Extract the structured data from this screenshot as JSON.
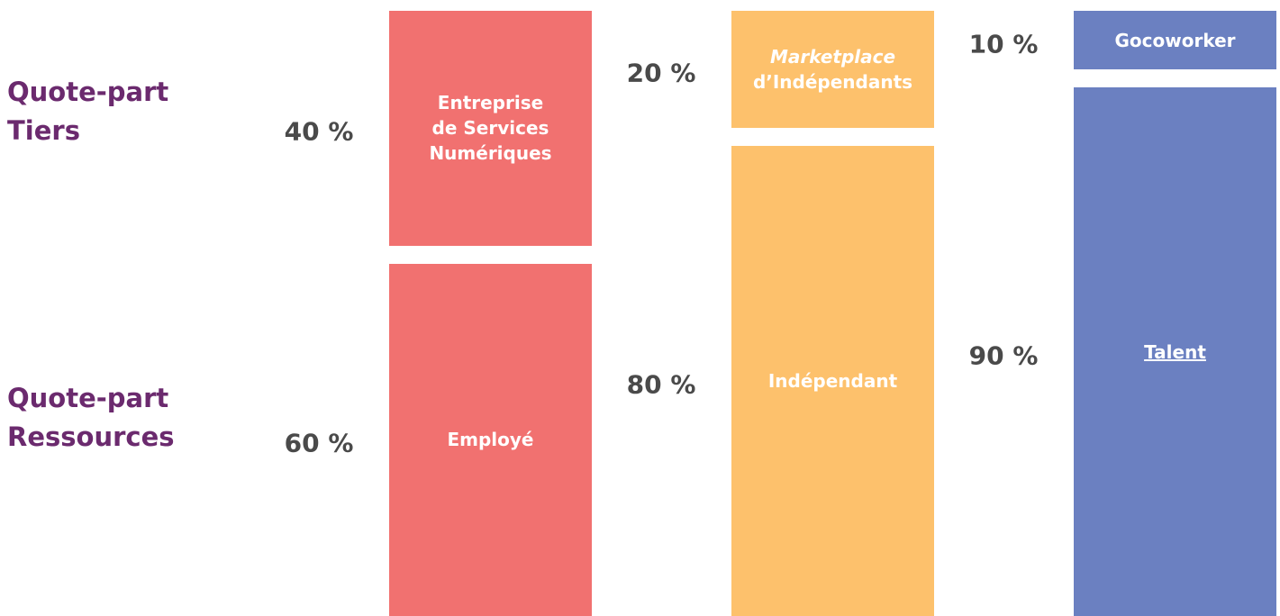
{
  "chart_data": {
    "type": "bar",
    "stacked": true,
    "categories": [
      null,
      null,
      null
    ],
    "colors": [
      "#f17170",
      "#fdc16c",
      "#6b80c1"
    ],
    "ylim": [
      0,
      100
    ],
    "series": [
      {
        "name": "Quote-part Tiers",
        "color": "#6b2a6e",
        "values": [
          40,
          20,
          10
        ],
        "value_labels": [
          "40 %",
          "20 %",
          "10 %"
        ],
        "labels": [
          [
            "Entreprise",
            "de Services",
            "Numériques"
          ],
          [
            "Marketplace",
            "d’Indépendants"
          ],
          [
            "Gocoworker"
          ]
        ]
      },
      {
        "name": "Quote-part Ressources",
        "color": "#6b2a6e",
        "values": [
          60,
          80,
          90
        ],
        "value_labels": [
          "60 %",
          "80 %",
          "90 %"
        ],
        "labels": [
          [
            "Employé"
          ],
          [
            "Indépendant"
          ],
          [
            "Talent"
          ]
        ]
      }
    ]
  }
}
